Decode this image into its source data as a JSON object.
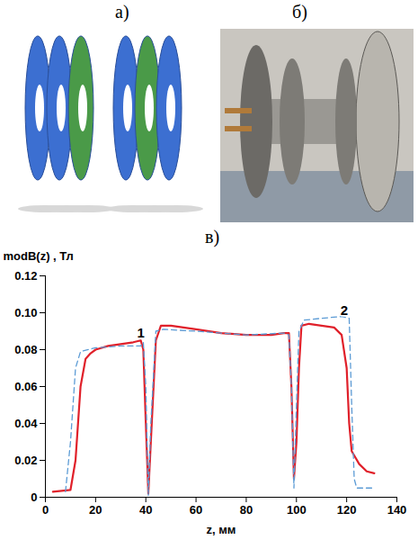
{
  "panel_labels": [
    "а)",
    "б)",
    "в)"
  ],
  "chart_data": {
    "type": "line",
    "x_label": "z, мм",
    "y_label": "modB(z) , Тл",
    "xlim": [
      0,
      140
    ],
    "xticks": [
      0,
      20,
      40,
      60,
      80,
      100,
      120,
      140
    ],
    "ylim": [
      0,
      0.12
    ],
    "yticks": [
      0,
      0.02,
      0.04,
      0.06,
      0.08,
      {
        "value": 0.1,
        "label": "0.10"
      },
      0.12
    ],
    "grid": false,
    "series": [
      {
        "color": "#e0202a",
        "line_style": "solid",
        "x": [
          3,
          10,
          12,
          14,
          16,
          18,
          20,
          25,
          30,
          35,
          38,
          39,
          40,
          41,
          42,
          44,
          46,
          50,
          60,
          70,
          80,
          90,
          95,
          97,
          98,
          99,
          100,
          101,
          102,
          105,
          110,
          115,
          118,
          120,
          121,
          122,
          125,
          128,
          131
        ],
        "values": [
          0.003,
          0.004,
          0.02,
          0.06,
          0.075,
          0.078,
          0.08,
          0.082,
          0.083,
          0.084,
          0.085,
          0.08,
          0.04,
          0.002,
          0.03,
          0.085,
          0.093,
          0.093,
          0.091,
          0.089,
          0.088,
          0.088,
          0.089,
          0.089,
          0.06,
          0.01,
          0.03,
          0.07,
          0.093,
          0.094,
          0.093,
          0.092,
          0.088,
          0.07,
          0.04,
          0.025,
          0.018,
          0.014,
          0.013
        ]
      },
      {
        "color": "#5b9bd5",
        "line_style": "dashed",
        "x": [
          8,
          10,
          12,
          14,
          20,
          30,
          38,
          39,
          40,
          41,
          42,
          44,
          47,
          60,
          80,
          95,
          97,
          98,
          99,
          100,
          101,
          103,
          110,
          118,
          121,
          122,
          123,
          124,
          131
        ],
        "values": [
          0.003,
          0.03,
          0.07,
          0.079,
          0.081,
          0.082,
          0.082,
          0.084,
          0.06,
          0.001,
          0.04,
          0.09,
          0.091,
          0.09,
          0.088,
          0.089,
          0.088,
          0.06,
          0.005,
          0.05,
          0.09,
          0.096,
          0.097,
          0.098,
          0.097,
          0.05,
          0.01,
          0.005,
          0.005
        ]
      }
    ],
    "annotations": [
      {
        "text": "1",
        "x": 38,
        "y": 0.089
      },
      {
        "text": "2",
        "x": 119,
        "y": 0.101
      }
    ]
  }
}
